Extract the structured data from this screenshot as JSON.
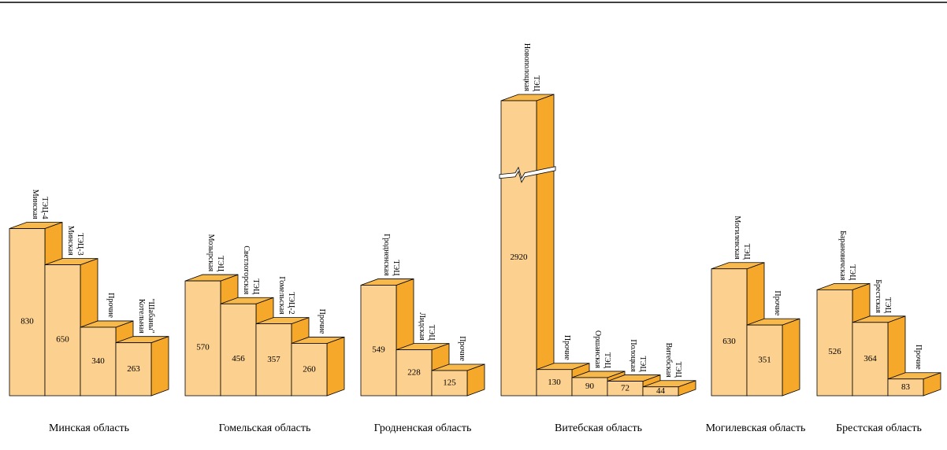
{
  "chart_data": {
    "type": "bar3d",
    "groups": [
      {
        "name": "Минская область",
        "bars": [
          {
            "name": "Минская ТЭЦ-4",
            "value": 830
          },
          {
            "name": "Минская ТЭЦ-3",
            "value": 650
          },
          {
            "name": "Прочие",
            "value": 340
          },
          {
            "name": "Котельная \"Шабаны\"",
            "value": 263
          }
        ]
      },
      {
        "name": "Гомельская область",
        "bars": [
          {
            "name": "Мозырская ТЭЦ",
            "value": 570
          },
          {
            "name": "Светлогорская ТЭЦ",
            "value": 456
          },
          {
            "name": "Гомельская ТЭЦ-2",
            "value": 357
          },
          {
            "name": "Прочие",
            "value": 260
          }
        ]
      },
      {
        "name": "Гродненская область",
        "bars": [
          {
            "name": "Гродненская ТЭЦ",
            "value": 549
          },
          {
            "name": "Лидская ТЭЦ",
            "value": 228
          },
          {
            "name": "Прочие",
            "value": 125
          }
        ]
      },
      {
        "name": "Витебская область",
        "bars": [
          {
            "name": "Новополоцкая ТЭЦ",
            "value": 2920
          },
          {
            "name": "Прочие",
            "value": 130
          },
          {
            "name": "Оршанская ТЭЦ",
            "value": 90
          },
          {
            "name": "Полоцкая ТЭЦ",
            "value": 72
          },
          {
            "name": "Витебская ТЭЦ",
            "value": 44
          }
        ]
      },
      {
        "name": "Могилевская область",
        "bars": [
          {
            "name": "Могилевская ТЭЦ",
            "value": 630
          },
          {
            "name": "Прочие",
            "value": 351
          }
        ]
      },
      {
        "name": "Брестская область",
        "bars": [
          {
            "name": "Барановичская ТЭЦ",
            "value": 526
          },
          {
            "name": "Брестская ТЭЦ",
            "value": 364
          },
          {
            "name": "Прочие",
            "value": 83
          }
        ]
      }
    ],
    "colors": {
      "front": "#fcd08e",
      "side": "#f5a829",
      "top": "#f8b94c"
    }
  }
}
